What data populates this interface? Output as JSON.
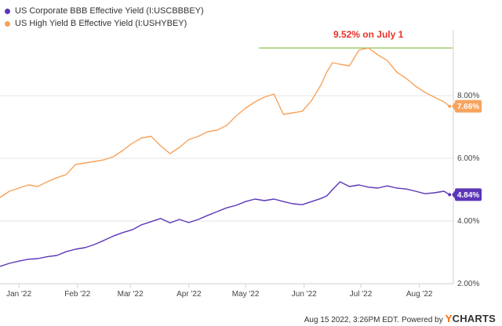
{
  "chart_data": {
    "type": "line",
    "title": "",
    "ylim": [
      2.0,
      10.0
    ],
    "y_ticks": [
      "2.00%",
      "4.00%",
      "6.00%",
      "8.00%"
    ],
    "y_tick_values": [
      2.0,
      4.0,
      6.0,
      8.0
    ],
    "x_ticks": [
      "Jan '22",
      "Feb '22",
      "Mar '22",
      "Apr '22",
      "May '22",
      "Jun '22",
      "Jul '22",
      "Aug '22"
    ],
    "x_tick_days": [
      10,
      41,
      69,
      100,
      130,
      161,
      191,
      222
    ],
    "x_range_days": [
      0,
      240
    ],
    "grid": "horizontal",
    "legend_position": "top-left",
    "annotation": {
      "label": "9.52% on July 1",
      "value": 9.52,
      "from_day": 137,
      "to_day": 240,
      "color": "#7bbf3a"
    },
    "series": [
      {
        "name": "US Corporate BBB Effective Yield (I:USCBBBEY)",
        "color": "#5c36b8",
        "last_label": "4.84%",
        "x": [
          0,
          5,
          10,
          15,
          20,
          25,
          30,
          35,
          40,
          45,
          50,
          55,
          60,
          65,
          70,
          75,
          80,
          85,
          90,
          95,
          100,
          105,
          110,
          115,
          120,
          125,
          130,
          135,
          140,
          145,
          150,
          155,
          160,
          165,
          170,
          173,
          176,
          180,
          185,
          190,
          195,
          200,
          205,
          210,
          215,
          220,
          225,
          230,
          235,
          238
        ],
        "values": [
          2.55,
          2.65,
          2.72,
          2.78,
          2.8,
          2.86,
          2.9,
          3.02,
          3.1,
          3.15,
          3.25,
          3.38,
          3.52,
          3.63,
          3.72,
          3.88,
          3.98,
          4.08,
          3.94,
          4.05,
          3.95,
          4.05,
          4.18,
          4.3,
          4.42,
          4.5,
          4.62,
          4.7,
          4.65,
          4.7,
          4.62,
          4.55,
          4.52,
          4.62,
          4.72,
          4.8,
          5.0,
          5.25,
          5.1,
          5.15,
          5.08,
          5.05,
          5.12,
          5.05,
          5.02,
          4.95,
          4.87,
          4.9,
          4.95,
          4.84
        ]
      },
      {
        "name": "US High Yield B Effective Yield (I:USHYBEY)",
        "color": "#f7a35c",
        "last_label": "7.66%",
        "x": [
          0,
          5,
          10,
          15,
          20,
          25,
          30,
          35,
          40,
          45,
          50,
          55,
          60,
          65,
          70,
          75,
          80,
          85,
          90,
          95,
          100,
          105,
          110,
          115,
          120,
          125,
          130,
          135,
          140,
          145,
          150,
          155,
          160,
          165,
          170,
          173,
          176,
          180,
          185,
          190,
          195,
          200,
          205,
          210,
          215,
          220,
          225,
          230,
          235,
          238
        ],
        "values": [
          4.75,
          4.95,
          5.05,
          5.15,
          5.1,
          5.25,
          5.38,
          5.48,
          5.8,
          5.85,
          5.9,
          5.95,
          6.05,
          6.25,
          6.48,
          6.65,
          6.7,
          6.4,
          6.15,
          6.35,
          6.6,
          6.7,
          6.85,
          6.9,
          7.05,
          7.35,
          7.6,
          7.8,
          7.95,
          8.05,
          7.4,
          7.45,
          7.5,
          7.85,
          8.35,
          8.75,
          9.05,
          9.0,
          8.95,
          9.45,
          9.52,
          9.3,
          9.12,
          8.75,
          8.55,
          8.3,
          8.1,
          7.95,
          7.8,
          7.66
        ]
      }
    ]
  },
  "footer": {
    "timestamp": "Aug 15 2022, 3:26PM EDT.",
    "powered_by": "Powered by",
    "brand_y": "Y",
    "brand_rest": "CHARTS"
  }
}
